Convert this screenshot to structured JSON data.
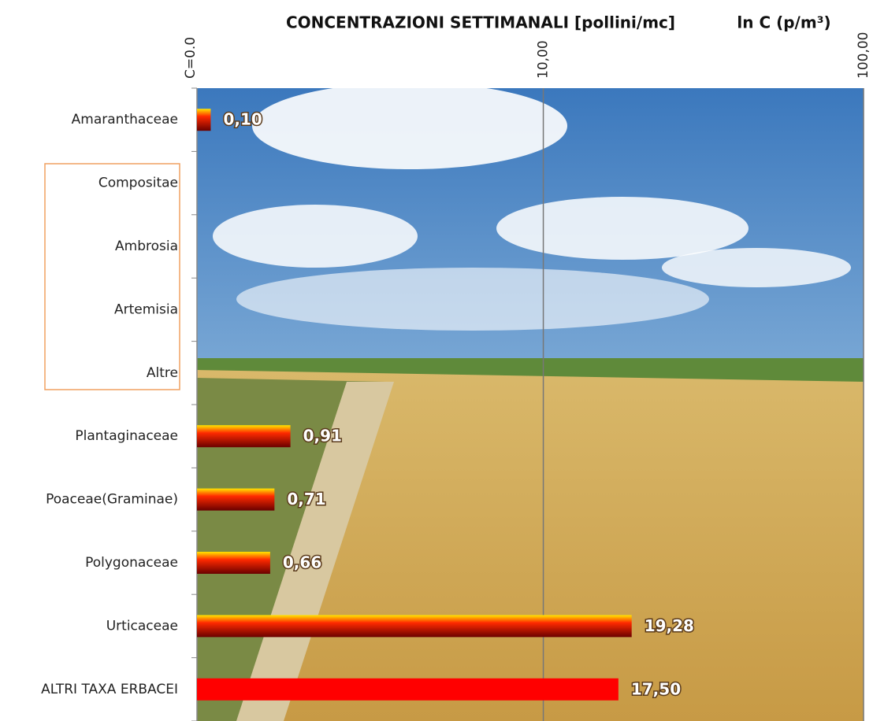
{
  "chart_data": {
    "type": "hbar",
    "title": "CONCENTRAZIONI SETTIMANALI  [pollini/mc]",
    "x_label": "ln C (p/m³)",
    "xscale": "log1p",
    "categories": [
      "Amaranthaceae",
      "Compositae",
      "Ambrosia",
      "Artemisia",
      "Altre",
      "Plantaginaceae",
      "Poaceae(Graminae)",
      "Polygonaceae",
      "Urticaceae",
      "ALTRI TAXA ERBACEI"
    ],
    "values": [
      0.1,
      null,
      null,
      null,
      null,
      0.91,
      0.71,
      0.66,
      19.28,
      17.5
    ],
    "value_labels": [
      "0,10",
      null,
      null,
      null,
      null,
      "0,91",
      "0,71",
      "0,66",
      "19,28",
      "17,50"
    ],
    "color": "#ff0000",
    "xlim": [
      0,
      100
    ],
    "xticks": [
      {
        "value": 0,
        "label": "C=0.0"
      },
      {
        "value": 10,
        "label": "10,00"
      },
      {
        "value": 100,
        "label": "100,00"
      }
    ],
    "grid": true
  }
}
